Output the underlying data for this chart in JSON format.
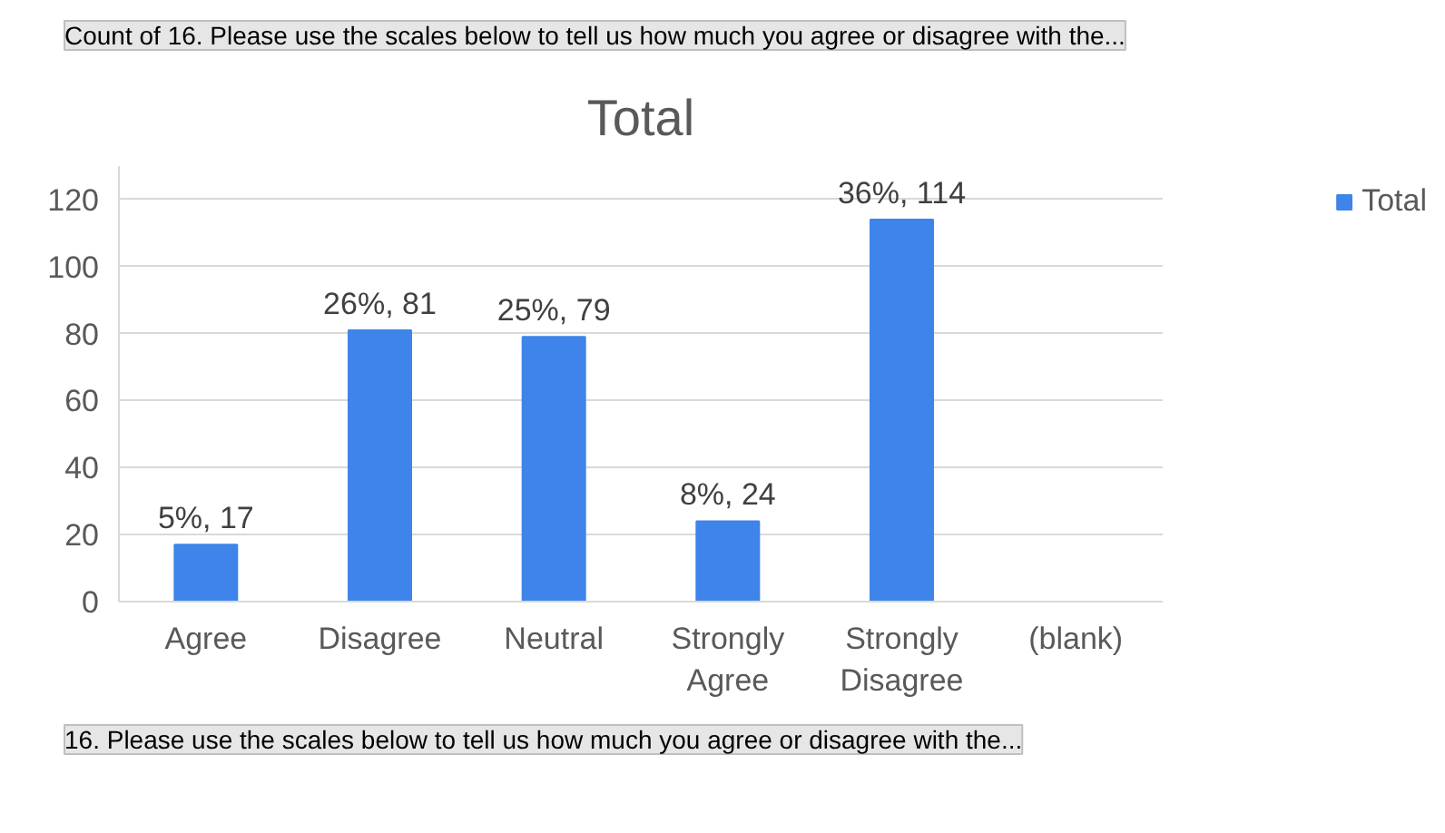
{
  "chart_data": {
    "type": "bar",
    "title": "Total",
    "annotations": [
      "Count of 16. Please use the scales below to tell us how much you agree or disagree with the...",
      "16. Please use the scales below to tell us how much you agree or disagree with the..."
    ],
    "categories": [
      "Agree",
      "Disagree",
      "Neutral",
      "Strongly Agree",
      "Strongly Disagree",
      "(blank)"
    ],
    "series": [
      {
        "name": "Total",
        "color": "#3e84ea",
        "values": [
          17,
          81,
          79,
          24,
          114,
          null
        ],
        "value_labels": [
          "5%, 17",
          "26%, 81",
          "25%, 79",
          "8%, 24",
          "36%, 114",
          null
        ]
      }
    ],
    "ylim": [
      0,
      130
    ],
    "yticks": [
      0,
      20,
      40,
      60,
      80,
      100,
      120
    ],
    "grid": "y",
    "legend": "right"
  }
}
